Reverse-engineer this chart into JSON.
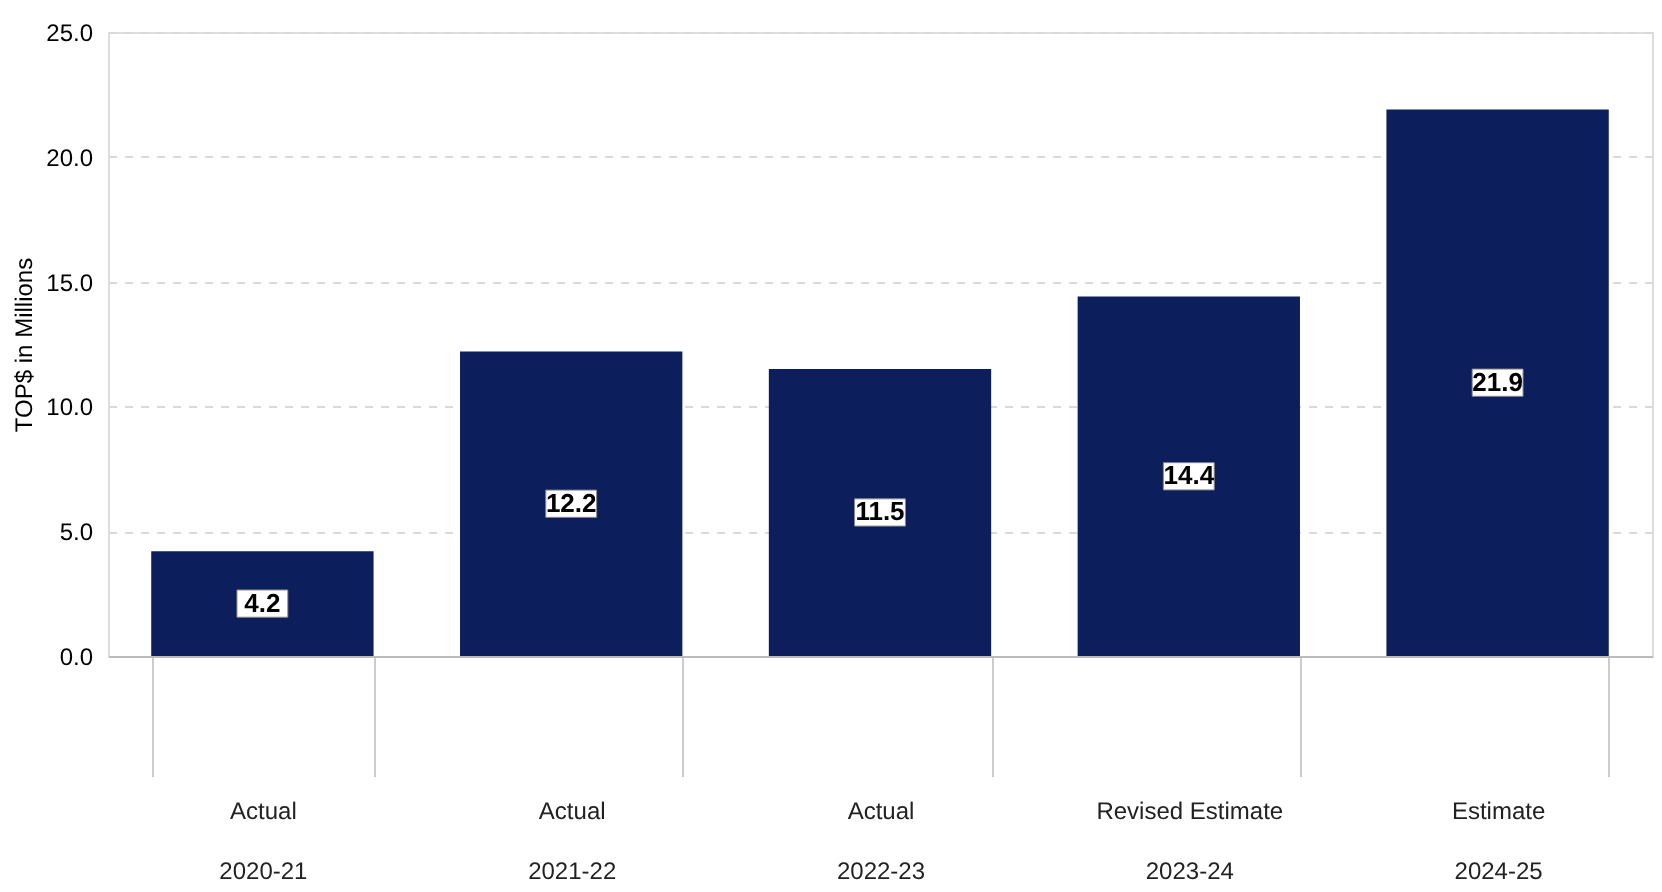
{
  "chart_data": {
    "type": "bar",
    "ylabel": "TOP$ in Millions",
    "categories": [
      "Actual\n2020-21",
      "Actual\n2021-22",
      "Actual\n2022-23",
      "Revised Estimate\n2023-24",
      "Estimate\n2024-25"
    ],
    "values": [
      4.2,
      12.2,
      11.5,
      14.4,
      21.9
    ],
    "color": "#0c1f5c",
    "ylim": [
      0,
      25
    ],
    "yticks": [
      {
        "value": 0,
        "label": "0.0"
      },
      {
        "value": 5,
        "label": "5.0"
      },
      {
        "value": 10,
        "label": "10.0"
      },
      {
        "value": 15,
        "label": "15.0"
      },
      {
        "value": 20,
        "label": "20.0"
      },
      {
        "value": 25,
        "label": "25.0"
      }
    ],
    "grid": "y",
    "data_labels": true
  }
}
